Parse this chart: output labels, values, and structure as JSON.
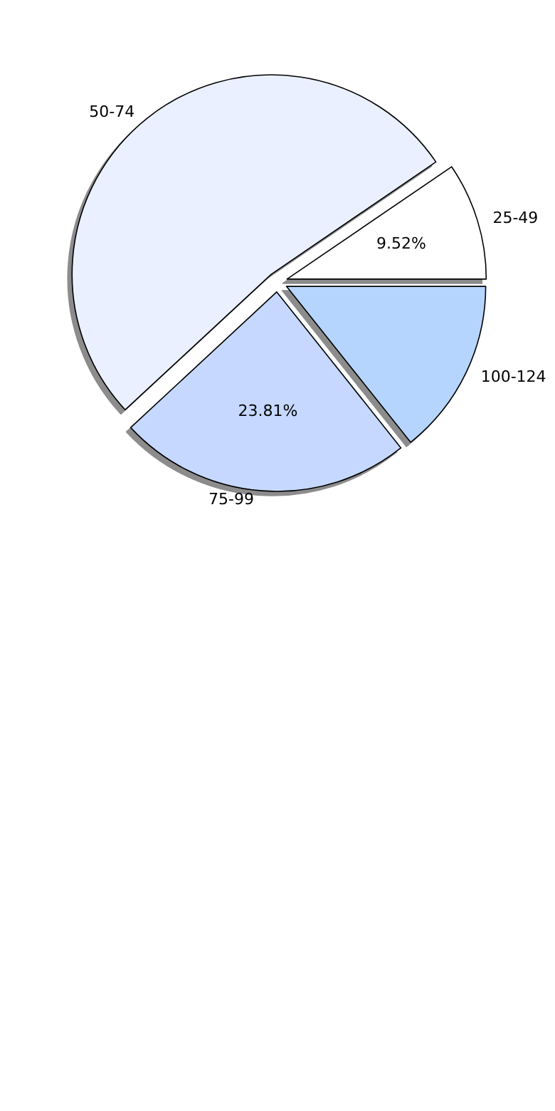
{
  "chart_data": {
    "type": "pie",
    "categories": [
      "25-49",
      "50-74",
      "75-99",
      "100-124"
    ],
    "values": [
      9.52,
      52.38,
      23.81,
      14.29
    ],
    "colors": [
      "#ffffff",
      "#eaf0ff",
      "#c6d8ff",
      "#b5d5ff"
    ],
    "value_labels": [
      "9.52%",
      null,
      "23.81%",
      null
    ],
    "legend": false
  }
}
